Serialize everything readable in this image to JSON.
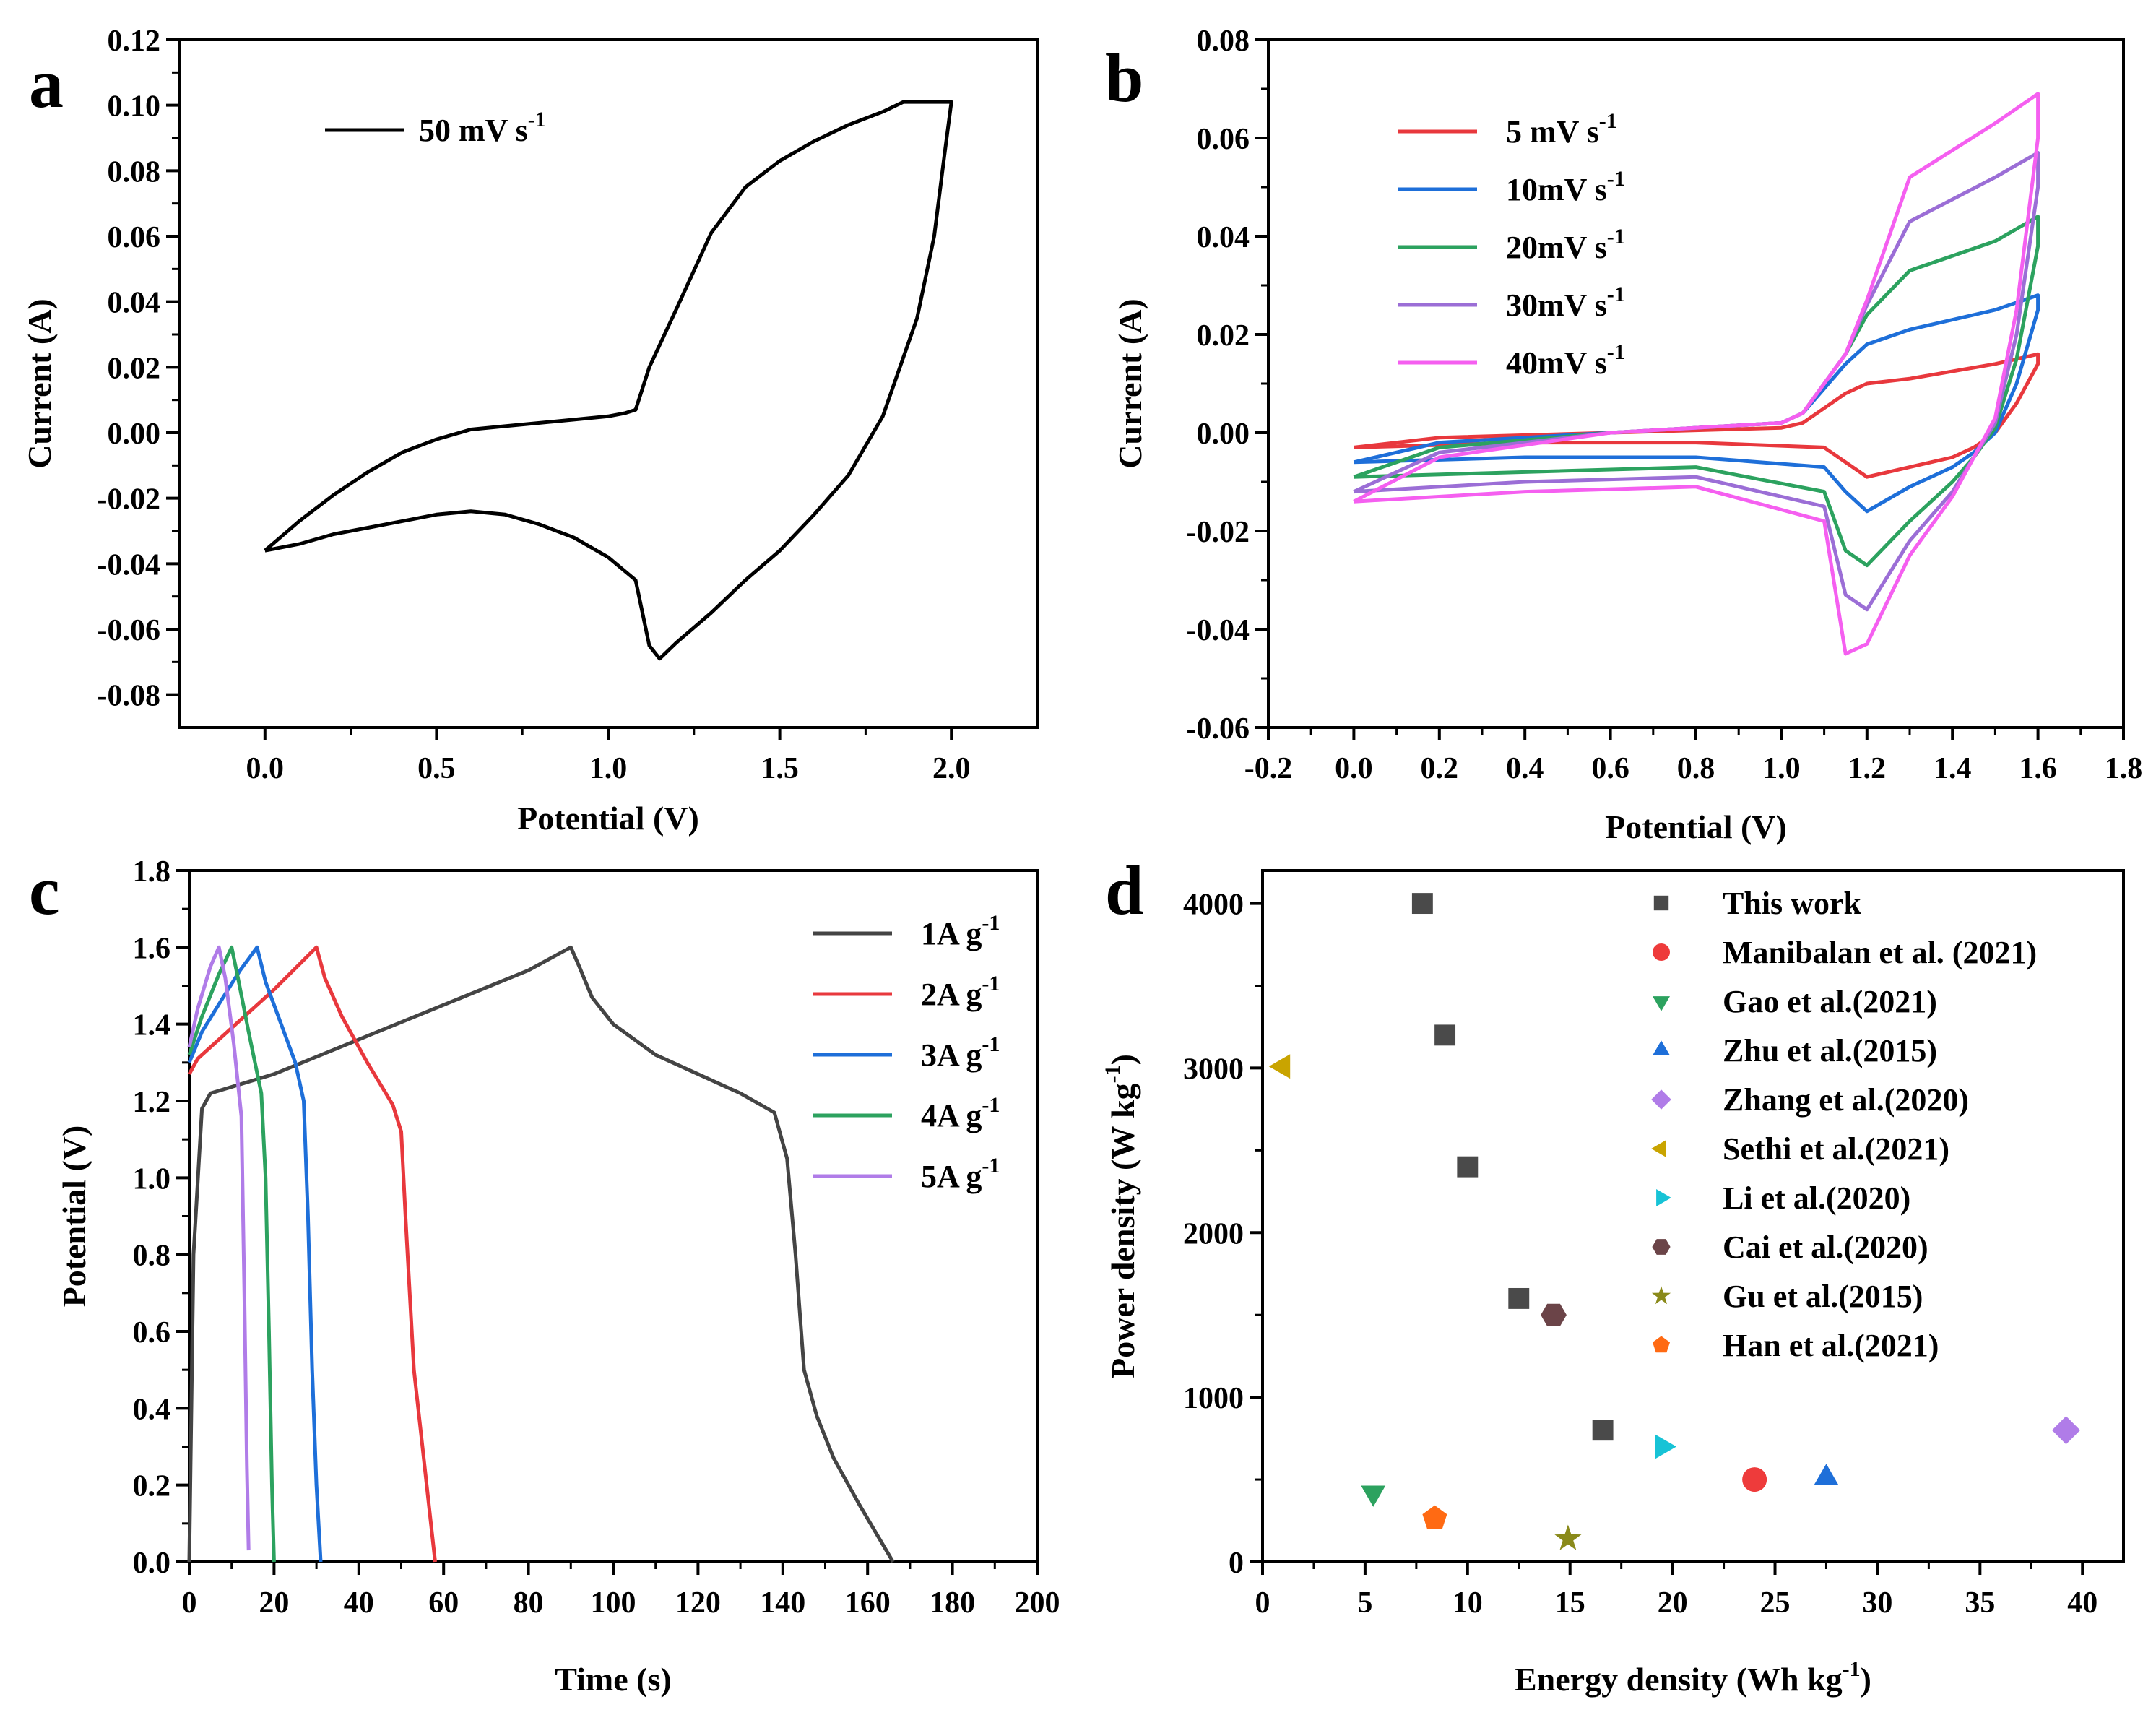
{
  "figure": "Electrochemical performance panels",
  "chart_data": [
    {
      "panel": "a",
      "type": "line",
      "xlabel": "Potential (V)",
      "ylabel": "Current (A)",
      "xlim": [
        -0.25,
        2.25
      ],
      "ylim": [
        -0.09,
        0.12
      ],
      "xticks": [
        0.0,
        0.5,
        1.0,
        1.5,
        2.0
      ],
      "xtick_labels": [
        "0.0",
        "0.5",
        "1.0",
        "1.5",
        "2.0"
      ],
      "yticks": [
        -0.08,
        -0.06,
        -0.04,
        -0.02,
        0.0,
        0.02,
        0.04,
        0.06,
        0.08,
        0.1,
        0.12
      ],
      "ytick_labels": [
        "-0.08",
        "-0.06",
        "-0.04",
        "-0.02",
        "0.00",
        "0.02",
        "0.04",
        "0.06",
        "0.08",
        "0.10",
        "0.12"
      ],
      "series": [
        {
          "name": "50 mV s-1",
          "label_main": "50 mV s",
          "label_sup": "-1",
          "color": "#000000",
          "x": [
            0.0,
            0.1,
            0.2,
            0.3,
            0.4,
            0.5,
            0.6,
            0.7,
            0.8,
            0.9,
            1.0,
            1.05,
            1.08,
            1.12,
            1.2,
            1.3,
            1.4,
            1.5,
            1.6,
            1.7,
            1.8,
            1.86,
            2.0,
            1.98,
            1.95,
            1.9,
            1.8,
            1.7,
            1.6,
            1.5,
            1.4,
            1.3,
            1.2,
            1.15,
            1.12,
            1.08,
            1.0,
            0.9,
            0.8,
            0.7,
            0.6,
            0.5,
            0.4,
            0.3,
            0.2,
            0.1,
            0.0
          ],
          "y": [
            -0.036,
            -0.027,
            -0.019,
            -0.012,
            -0.006,
            -0.002,
            0.001,
            0.002,
            0.003,
            0.004,
            0.005,
            0.006,
            0.007,
            0.02,
            0.038,
            0.061,
            0.075,
            0.083,
            0.089,
            0.094,
            0.098,
            0.101,
            0.101,
            0.085,
            0.06,
            0.035,
            0.005,
            -0.013,
            -0.025,
            -0.036,
            -0.045,
            -0.055,
            -0.064,
            -0.069,
            -0.065,
            -0.045,
            -0.038,
            -0.032,
            -0.028,
            -0.025,
            -0.024,
            -0.025,
            -0.027,
            -0.029,
            -0.031,
            -0.034,
            -0.036
          ]
        }
      ]
    },
    {
      "panel": "b",
      "type": "line",
      "xlabel": "Potential (V)",
      "ylabel": "Current (A)",
      "xlim": [
        -0.2,
        1.8
      ],
      "ylim": [
        -0.06,
        0.08
      ],
      "xticks": [
        -0.2,
        0.0,
        0.2,
        0.4,
        0.6,
        0.8,
        1.0,
        1.2,
        1.4,
        1.6,
        1.8
      ],
      "xtick_labels": [
        "-0.2",
        "0.0",
        "0.2",
        "0.4",
        "0.6",
        "0.8",
        "1.0",
        "1.2",
        "1.4",
        "1.6",
        "1.8"
      ],
      "yticks": [
        -0.06,
        -0.04,
        -0.02,
        0.0,
        0.02,
        0.04,
        0.06,
        0.08
      ],
      "ytick_labels": [
        "-0.06",
        "-0.04",
        "-0.02",
        "0.00",
        "0.02",
        "0.04",
        "0.06",
        "0.08"
      ],
      "series": [
        {
          "name": "5 mV s-1",
          "label_main": "5  mV s",
          "label_sup": "-1",
          "color": "#e8383d",
          "x": [
            0.0,
            0.2,
            0.6,
            1.0,
            1.05,
            1.1,
            1.15,
            1.2,
            1.3,
            1.5,
            1.6,
            1.6,
            1.55,
            1.5,
            1.45,
            1.4,
            1.3,
            1.2,
            1.15,
            1.1,
            0.8,
            0.4,
            0.0
          ],
          "y": [
            -0.003,
            -0.001,
            0.0,
            0.001,
            0.002,
            0.005,
            0.008,
            0.01,
            0.011,
            0.014,
            0.016,
            0.014,
            0.006,
            0.0,
            -0.003,
            -0.005,
            -0.007,
            -0.009,
            -0.006,
            -0.003,
            -0.002,
            -0.002,
            -0.003
          ]
        },
        {
          "name": "10mV s-1",
          "label_main": "10mV s",
          "label_sup": "-1",
          "color": "#1e6fd9",
          "x": [
            0.0,
            0.2,
            0.6,
            1.0,
            1.05,
            1.1,
            1.15,
            1.2,
            1.3,
            1.5,
            1.6,
            1.6,
            1.55,
            1.5,
            1.45,
            1.4,
            1.3,
            1.2,
            1.15,
            1.1,
            0.8,
            0.4,
            0.0
          ],
          "y": [
            -0.006,
            -0.002,
            0.0,
            0.002,
            0.004,
            0.009,
            0.014,
            0.018,
            0.021,
            0.025,
            0.028,
            0.025,
            0.01,
            0.0,
            -0.004,
            -0.007,
            -0.011,
            -0.016,
            -0.012,
            -0.007,
            -0.005,
            -0.005,
            -0.006
          ]
        },
        {
          "name": "20mV s-1",
          "label_main": "20mV s",
          "label_sup": "-1",
          "color": "#2ca25f",
          "x": [
            0.0,
            0.2,
            0.6,
            1.0,
            1.05,
            1.1,
            1.15,
            1.2,
            1.3,
            1.5,
            1.6,
            1.6,
            1.55,
            1.5,
            1.45,
            1.4,
            1.3,
            1.2,
            1.15,
            1.1,
            0.8,
            0.4,
            0.0
          ],
          "y": [
            -0.009,
            -0.003,
            0.0,
            0.002,
            0.004,
            0.01,
            0.016,
            0.024,
            0.033,
            0.039,
            0.044,
            0.038,
            0.015,
            0.001,
            -0.005,
            -0.01,
            -0.018,
            -0.027,
            -0.024,
            -0.012,
            -0.007,
            -0.008,
            -0.009
          ]
        },
        {
          "name": "30mV s-1",
          "label_main": "30mV s",
          "label_sup": "-1",
          "color": "#9b6ed6",
          "x": [
            0.0,
            0.2,
            0.6,
            1.0,
            1.05,
            1.1,
            1.15,
            1.2,
            1.3,
            1.5,
            1.6,
            1.6,
            1.55,
            1.5,
            1.45,
            1.4,
            1.3,
            1.2,
            1.15,
            1.1,
            0.8,
            0.4,
            0.0
          ],
          "y": [
            -0.012,
            -0.004,
            0.0,
            0.002,
            0.004,
            0.01,
            0.016,
            0.026,
            0.043,
            0.052,
            0.057,
            0.05,
            0.02,
            0.002,
            -0.005,
            -0.012,
            -0.022,
            -0.036,
            -0.033,
            -0.015,
            -0.009,
            -0.01,
            -0.012
          ]
        },
        {
          "name": "40mV s-1",
          "label_main": "40mV s",
          "label_sup": "-1",
          "color": "#f55ff0",
          "x": [
            0.0,
            0.2,
            0.6,
            1.0,
            1.05,
            1.1,
            1.15,
            1.2,
            1.3,
            1.5,
            1.6,
            1.6,
            1.55,
            1.5,
            1.45,
            1.4,
            1.3,
            1.2,
            1.15,
            1.1,
            0.8,
            0.4,
            0.0
          ],
          "y": [
            -0.014,
            -0.005,
            0.0,
            0.002,
            0.004,
            0.01,
            0.016,
            0.027,
            0.052,
            0.063,
            0.069,
            0.06,
            0.025,
            0.003,
            -0.005,
            -0.013,
            -0.025,
            -0.043,
            -0.045,
            -0.018,
            -0.011,
            -0.012,
            -0.014
          ]
        }
      ]
    },
    {
      "panel": "c",
      "type": "line",
      "xlabel": "Time (s)",
      "ylabel": "Potential (V)",
      "xlim": [
        0,
        200
      ],
      "ylim": [
        0.0,
        1.8
      ],
      "xticks": [
        0,
        20,
        40,
        60,
        80,
        100,
        120,
        140,
        160,
        180,
        200
      ],
      "xtick_labels": [
        "0",
        "20",
        "40",
        "60",
        "80",
        "100",
        "120",
        "140",
        "160",
        "180",
        "200"
      ],
      "yticks": [
        0.0,
        0.2,
        0.4,
        0.6,
        0.8,
        1.0,
        1.2,
        1.4,
        1.6,
        1.8
      ],
      "ytick_labels": [
        "0.0",
        "0.2",
        "0.4",
        "0.6",
        "0.8",
        "1.0",
        "1.2",
        "1.4",
        "1.6",
        "1.8"
      ],
      "series": [
        {
          "name": "1A g-1",
          "label_main": "1A g",
          "label_sup": "-1",
          "color": "#444444",
          "x": [
            0,
            1,
            3,
            5,
            20,
            40,
            60,
            80,
            90,
            92,
            95,
            100,
            110,
            120,
            130,
            138,
            141,
            143,
            145,
            148,
            152,
            158,
            166
          ],
          "y": [
            0.0,
            0.8,
            1.18,
            1.22,
            1.27,
            1.36,
            1.45,
            1.54,
            1.6,
            1.55,
            1.47,
            1.4,
            1.32,
            1.27,
            1.22,
            1.17,
            1.05,
            0.8,
            0.5,
            0.38,
            0.27,
            0.15,
            0.0
          ]
        },
        {
          "name": "2A g-1",
          "label_main": "2A g",
          "label_sup": "-1",
          "color": "#e8383d",
          "x": [
            0,
            2,
            10,
            20,
            30,
            32,
            36,
            42,
            48,
            50,
            51,
            53,
            55,
            57,
            58
          ],
          "y": [
            1.27,
            1.31,
            1.39,
            1.49,
            1.6,
            1.52,
            1.42,
            1.3,
            1.19,
            1.12,
            0.9,
            0.5,
            0.3,
            0.1,
            0.0
          ]
        },
        {
          "name": "3A g-1",
          "label_main": "3A g",
          "label_sup": "-1",
          "color": "#1e6fd9",
          "x": [
            0,
            3,
            8,
            12,
            16,
            18,
            21,
            25,
            27,
            28,
            29,
            30,
            31
          ],
          "y": [
            1.3,
            1.38,
            1.47,
            1.54,
            1.6,
            1.51,
            1.42,
            1.3,
            1.2,
            0.9,
            0.5,
            0.2,
            0.0
          ]
        },
        {
          "name": "4A g-1",
          "label_main": "4A g",
          "label_sup": "-1",
          "color": "#2ca25f",
          "x": [
            0,
            3,
            7,
            10,
            11.5,
            14,
            17,
            18,
            18.8,
            19.5,
            20
          ],
          "y": [
            1.32,
            1.42,
            1.53,
            1.6,
            1.52,
            1.38,
            1.22,
            1.0,
            0.6,
            0.2,
            0.0
          ]
        },
        {
          "name": "5A g-1",
          "label_main": "5A g",
          "label_sup": "-1",
          "color": "#b07ce8",
          "x": [
            0,
            2,
            5,
            7,
            8.5,
            10.5,
            12.3,
            13,
            13.6,
            14
          ],
          "y": [
            1.34,
            1.44,
            1.55,
            1.6,
            1.52,
            1.35,
            1.16,
            0.7,
            0.25,
            0.03
          ]
        }
      ]
    },
    {
      "panel": "d",
      "type": "scatter",
      "xlabel_main": "Energy density (Wh kg",
      "xlabel_sup": "-1",
      "xlabel_end": ")",
      "ylabel_main": "Power density (W kg",
      "ylabel_sup": "-1",
      "ylabel_end": ")",
      "xlim": [
        0,
        42
      ],
      "ylim": [
        0,
        4200
      ],
      "xticks": [
        0,
        5,
        10,
        15,
        20,
        25,
        30,
        35,
        40
      ],
      "xtick_labels": [
        "0",
        "5",
        "10",
        "15",
        "20",
        "25",
        "30",
        "35",
        "40"
      ],
      "yticks": [
        0,
        1000,
        2000,
        3000,
        4000
      ],
      "ytick_labels": [
        "0",
        "1000",
        "2000",
        "3000",
        "4000"
      ],
      "series": [
        {
          "name": "This work",
          "marker": "square",
          "color": "#4a4a4a",
          "x": [
            7.8,
            8.9,
            10.0,
            12.5,
            16.6
          ],
          "y": [
            4000,
            3200,
            2400,
            1600,
            800
          ]
        },
        {
          "name": "Manibalan et al. (2021)",
          "marker": "circle",
          "color": "#ee3b3b",
          "x": [
            24.0
          ],
          "y": [
            500
          ]
        },
        {
          "name": "Gao et al.(2021)",
          "marker": "triangle-down",
          "color": "#2ca25f",
          "x": [
            5.4
          ],
          "y": [
            420
          ]
        },
        {
          "name": "Zhu et al.(2015)",
          "marker": "triangle-up",
          "color": "#1e6fd9",
          "x": [
            27.5
          ],
          "y": [
            510
          ]
        },
        {
          "name": "Zhang et al.(2020)",
          "marker": "diamond",
          "color": "#b07ce8",
          "x": [
            39.2
          ],
          "y": [
            800
          ]
        },
        {
          "name": "Sethi et al.(2021)",
          "marker": "triangle-left",
          "color": "#c9a400",
          "x": [
            1.0
          ],
          "y": [
            3010
          ]
        },
        {
          "name": "Li et al.(2020)",
          "marker": "triangle-right",
          "color": "#17c3d6",
          "x": [
            19.5
          ],
          "y": [
            700
          ]
        },
        {
          "name": "Cai et al.(2020)",
          "marker": "hexagon",
          "color": "#6b4448",
          "x": [
            14.2
          ],
          "y": [
            1500
          ]
        },
        {
          "name": "Gu et al.(2015)",
          "marker": "star",
          "color": "#8a8a1a",
          "x": [
            14.9
          ],
          "y": [
            140
          ]
        },
        {
          "name": "Han et al.(2021)",
          "marker": "pentagon",
          "color": "#ff6a13",
          "x": [
            8.4
          ],
          "y": [
            265
          ]
        }
      ]
    }
  ]
}
